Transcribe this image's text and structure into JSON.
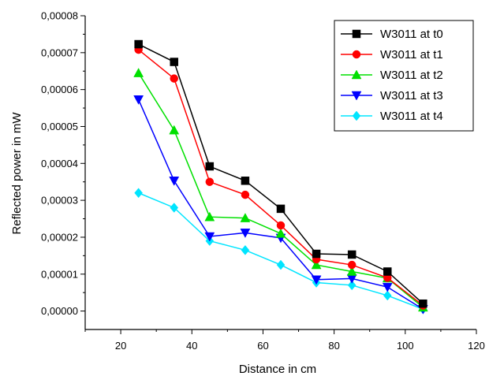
{
  "chart_data": {
    "type": "line",
    "title": "",
    "xlabel": "Distance in cm",
    "ylabel": "Reflected power in mW",
    "xlim": [
      10,
      120
    ],
    "ylim": [
      -5e-06,
      8e-05
    ],
    "x_ticks": [
      20,
      40,
      60,
      80,
      100,
      120
    ],
    "x_tick_labels": [
      "20",
      "40",
      "60",
      "80",
      "100",
      "120"
    ],
    "y_ticks": [
      0,
      1e-05,
      2e-05,
      3e-05,
      4e-05,
      5e-05,
      6e-05,
      7e-05,
      8e-05
    ],
    "y_tick_labels": [
      "0,00000",
      "0,00001",
      "0,00002",
      "0,00003",
      "0,00004",
      "0,00005",
      "0,00006",
      "0,00007",
      "0,00008"
    ],
    "grid": false,
    "legend_position": "top-right",
    "x": [
      25,
      35,
      45,
      55,
      65,
      75,
      85,
      95,
      105
    ],
    "series": [
      {
        "name": "W3011 at t0",
        "color": "#000000",
        "marker": "square",
        "values": [
          7.23e-05,
          6.75e-05,
          3.92e-05,
          3.53e-05,
          2.77e-05,
          1.55e-05,
          1.53e-05,
          1.07e-05,
          2e-06
        ]
      },
      {
        "name": "W3011 at t1",
        "color": "#ff0000",
        "marker": "circle",
        "values": [
          7.08e-05,
          6.3e-05,
          3.5e-05,
          3.15e-05,
          2.32e-05,
          1.4e-05,
          1.25e-05,
          9e-06,
          1.5e-06
        ]
      },
      {
        "name": "W3011 at t2",
        "color": "#00e000",
        "marker": "triangle-up",
        "values": [
          6.45e-05,
          4.9e-05,
          2.55e-05,
          2.52e-05,
          2.1e-05,
          1.25e-05,
          1.07e-05,
          8.9e-06,
          1e-06
        ]
      },
      {
        "name": "W3011 at t3",
        "color": "#0000ff",
        "marker": "triangle-down",
        "values": [
          5.73e-05,
          3.53e-05,
          2.02e-05,
          2.12e-05,
          1.98e-05,
          8.5e-06,
          8.8e-06,
          6.5e-06,
          5e-07
        ]
      },
      {
        "name": "W3011 at t4",
        "color": "#00e5ff",
        "marker": "diamond",
        "values": [
          3.2e-05,
          2.8e-05,
          1.9e-05,
          1.65e-05,
          1.25e-05,
          7.7e-06,
          7e-06,
          4.2e-06,
          5e-07
        ]
      }
    ]
  }
}
